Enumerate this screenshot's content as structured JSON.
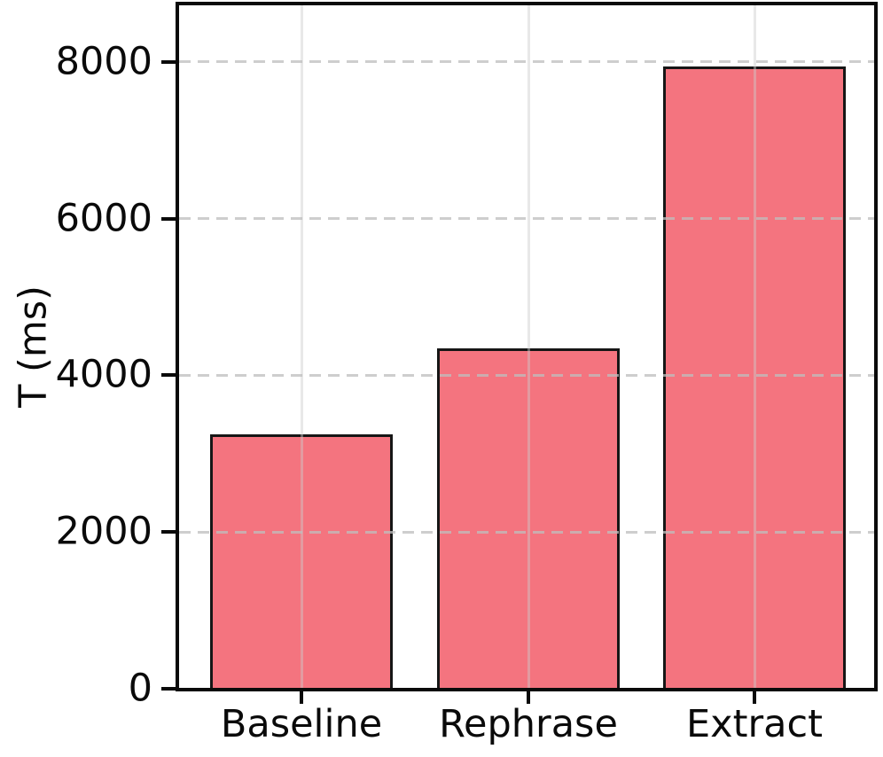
{
  "figure": {
    "background_color": "#ffffff",
    "text_color": "#0a0a0a"
  },
  "chart_data": {
    "type": "bar",
    "title": "",
    "xlabel": "",
    "ylabel": "T (ms)",
    "categories": [
      "Baseline",
      "Rephrase",
      "Extract"
    ],
    "values": [
      3250,
      4340,
      7940
    ],
    "yticks": [
      0,
      2000,
      4000,
      6000,
      8000
    ],
    "ytick_labels": [
      "0",
      "2000",
      "4000",
      "6000",
      "8000"
    ],
    "ylim": [
      0,
      8745
    ],
    "bar_color": "#f4747f",
    "bar_edge_color": "#161616",
    "grid": {
      "horizontal_style": "dashed",
      "vertical_style": "solid",
      "color": "#d9d9d9",
      "drawn_over_bars": true
    },
    "legend": null,
    "frame": "full-box"
  }
}
